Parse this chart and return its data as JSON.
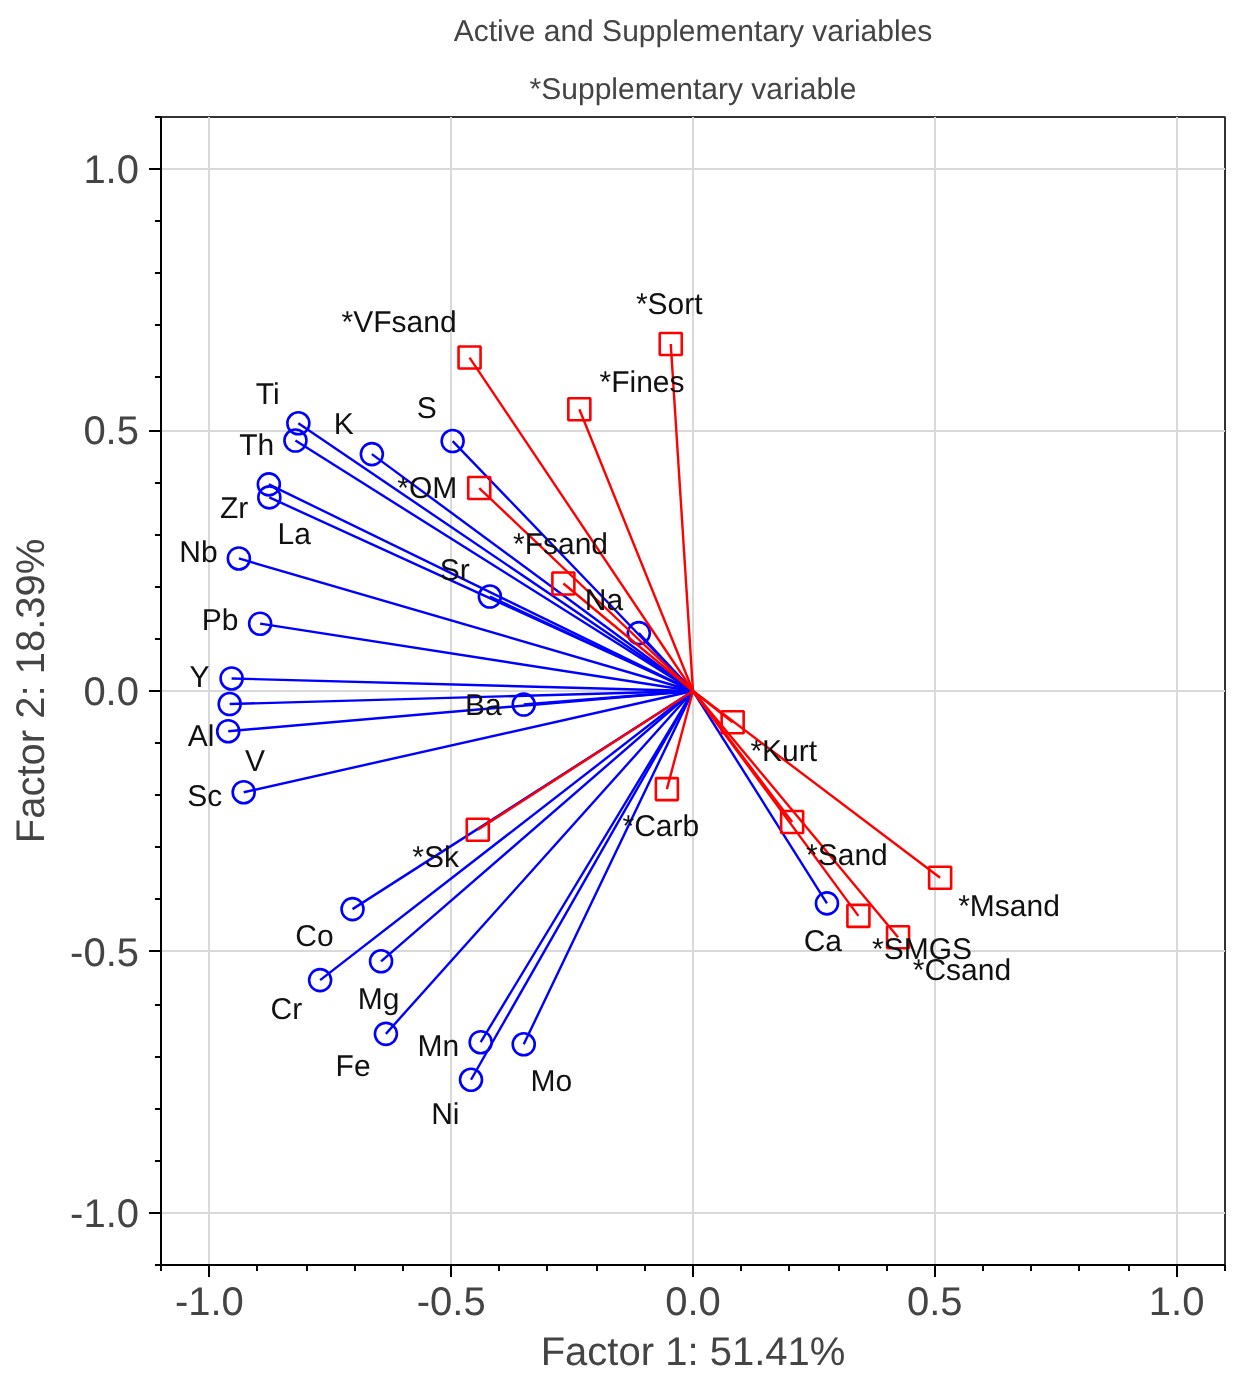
{
  "chart_data": {
    "type": "scatter",
    "title": "Active and Supplementary variables",
    "subtitle": "*Supplementary variable",
    "xlabel": "Factor 1: 51.41%",
    "ylabel": "Factor 2: 18.39%",
    "xlim": [
      -1.1,
      1.1
    ],
    "ylim": [
      -1.1,
      1.1
    ],
    "xticks": [
      {
        "value": -1.0,
        "label": "-1.0"
      },
      {
        "value": -0.5,
        "label": "-0.5"
      },
      {
        "value": 0.0,
        "label": "0.0"
      },
      {
        "value": 0.5,
        "label": "0.5"
      },
      {
        "value": 1.0,
        "label": "1.0"
      }
    ],
    "yticks": [
      {
        "value": -1.0,
        "label": "-1.0"
      },
      {
        "value": -0.5,
        "label": "-0.5"
      },
      {
        "value": 0.0,
        "label": "0.0"
      },
      {
        "value": 0.5,
        "label": "0.5"
      },
      {
        "value": 1.0,
        "label": "1.0"
      }
    ],
    "grid": true,
    "series": [
      {
        "color": "#0000ff",
        "marker": "circle",
        "x": [
          -0.816,
          -0.822,
          -0.877,
          -0.876,
          -0.664,
          -0.497,
          -0.939,
          -0.895,
          -0.954,
          -0.958,
          -0.961,
          -0.929,
          -0.42,
          -0.35,
          -0.112,
          -0.704,
          -0.771,
          -0.645,
          -0.635,
          -0.439,
          -0.459,
          -0.35,
          0.277
        ],
        "values": [
          0.513,
          0.48,
          0.396,
          0.371,
          0.454,
          0.479,
          0.254,
          0.129,
          0.024,
          -0.025,
          -0.077,
          -0.194,
          0.181,
          -0.026,
          0.111,
          -0.418,
          -0.554,
          -0.518,
          -0.657,
          -0.673,
          -0.745,
          -0.677,
          -0.407
        ]
      },
      {
        "color": "#ff0000",
        "marker": "square",
        "x": [
          -0.462,
          -0.046,
          -0.235,
          -0.442,
          -0.268,
          -0.445,
          -0.054,
          0.082,
          0.205,
          0.511,
          0.342,
          0.424
        ],
        "values": [
          0.639,
          0.665,
          0.54,
          0.389,
          0.206,
          -0.266,
          -0.188,
          -0.06,
          -0.251,
          -0.358,
          -0.431,
          -0.472
        ]
      }
    ],
    "annotations": [
      {
        "text": "Ti",
        "x": -0.816,
        "y": 0.513
      },
      {
        "text": "Th",
        "x": -0.822,
        "y": 0.48
      },
      {
        "text": "Zr",
        "x": -0.877,
        "y": 0.396
      },
      {
        "text": "La",
        "x": -0.876,
        "y": 0.371
      },
      {
        "text": "K",
        "x": -0.664,
        "y": 0.454
      },
      {
        "text": "S",
        "x": -0.497,
        "y": 0.479
      },
      {
        "text": "Nb",
        "x": -0.939,
        "y": 0.254
      },
      {
        "text": "Pb",
        "x": -0.895,
        "y": 0.129
      },
      {
        "text": "Y",
        "x": -0.954,
        "y": 0.024
      },
      {
        "text": "Al",
        "x": -0.958,
        "y": -0.025
      },
      {
        "text": "V",
        "x": -0.961,
        "y": -0.077
      },
      {
        "text": "Sc",
        "x": -0.929,
        "y": -0.194
      },
      {
        "text": "Sr",
        "x": -0.42,
        "y": 0.181
      },
      {
        "text": "Ba",
        "x": -0.35,
        "y": -0.026
      },
      {
        "text": "Na",
        "x": -0.112,
        "y": 0.111
      },
      {
        "text": "Co",
        "x": -0.704,
        "y": -0.418
      },
      {
        "text": "Cr",
        "x": -0.771,
        "y": -0.554
      },
      {
        "text": "Mg",
        "x": -0.645,
        "y": -0.518
      },
      {
        "text": "Fe",
        "x": -0.635,
        "y": -0.657
      },
      {
        "text": "Mn",
        "x": -0.439,
        "y": -0.673
      },
      {
        "text": "Ni",
        "x": -0.459,
        "y": -0.745
      },
      {
        "text": "Mo",
        "x": -0.35,
        "y": -0.677
      },
      {
        "text": "Ca",
        "x": 0.277,
        "y": -0.407
      },
      {
        "text": "*VFsand",
        "x": -0.462,
        "y": 0.639
      },
      {
        "text": "*Sort",
        "x": -0.046,
        "y": 0.665
      },
      {
        "text": "*Fines",
        "x": -0.235,
        "y": 0.54
      },
      {
        "text": "*OM",
        "x": -0.442,
        "y": 0.389
      },
      {
        "text": "*Fsand",
        "x": -0.268,
        "y": 0.206
      },
      {
        "text": "*Sk",
        "x": -0.445,
        "y": -0.266
      },
      {
        "text": "*Carb",
        "x": -0.054,
        "y": -0.188
      },
      {
        "text": "*Kurt",
        "x": 0.082,
        "y": -0.06
      },
      {
        "text": "*Sand",
        "x": 0.205,
        "y": -0.251
      },
      {
        "text": "*Msand",
        "x": 0.511,
        "y": -0.358
      },
      {
        "text": "*SMGS",
        "x": 0.342,
        "y": -0.431
      },
      {
        "text": "*Csand",
        "x": 0.424,
        "y": -0.472
      }
    ]
  }
}
